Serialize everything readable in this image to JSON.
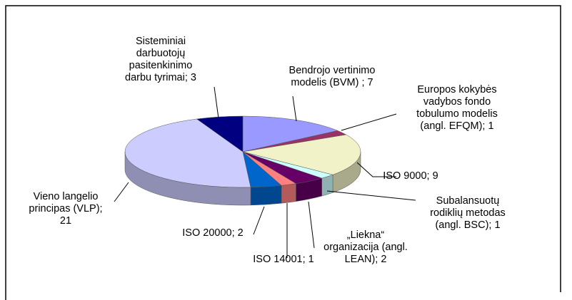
{
  "chart_data": {
    "type": "pie3d",
    "values": [
      7,
      1,
      9,
      1,
      2,
      1,
      2,
      21,
      3
    ],
    "value_labels": [
      "Bendrojo vertinimo\nmodelis (BVM) ; 7",
      "Europos kokybės\nvadybos fondo\ntobulumo modelis\n(angl. EFQM); 1",
      "ISO 9000; 9",
      "Subalansuotų\nrodiklių metodas\n(angl. BSC); 1",
      "„Liekna“\norganizacija (angl.\nLEAN); 2",
      "ISO 14001; 1",
      "ISO 20000; 2",
      "Vieno langelio\nprincipas (VLP);\n21",
      "Sisteminiai\ndarbuotojų\npasitenkinimo\ndarbu tyrimai; 3"
    ],
    "colors": [
      "#9999ff",
      "#993366",
      "#f2f2c8",
      "#ccffff",
      "#660066",
      "#ff8080",
      "#0066cc",
      "#ccccff",
      "#000080"
    ]
  }
}
